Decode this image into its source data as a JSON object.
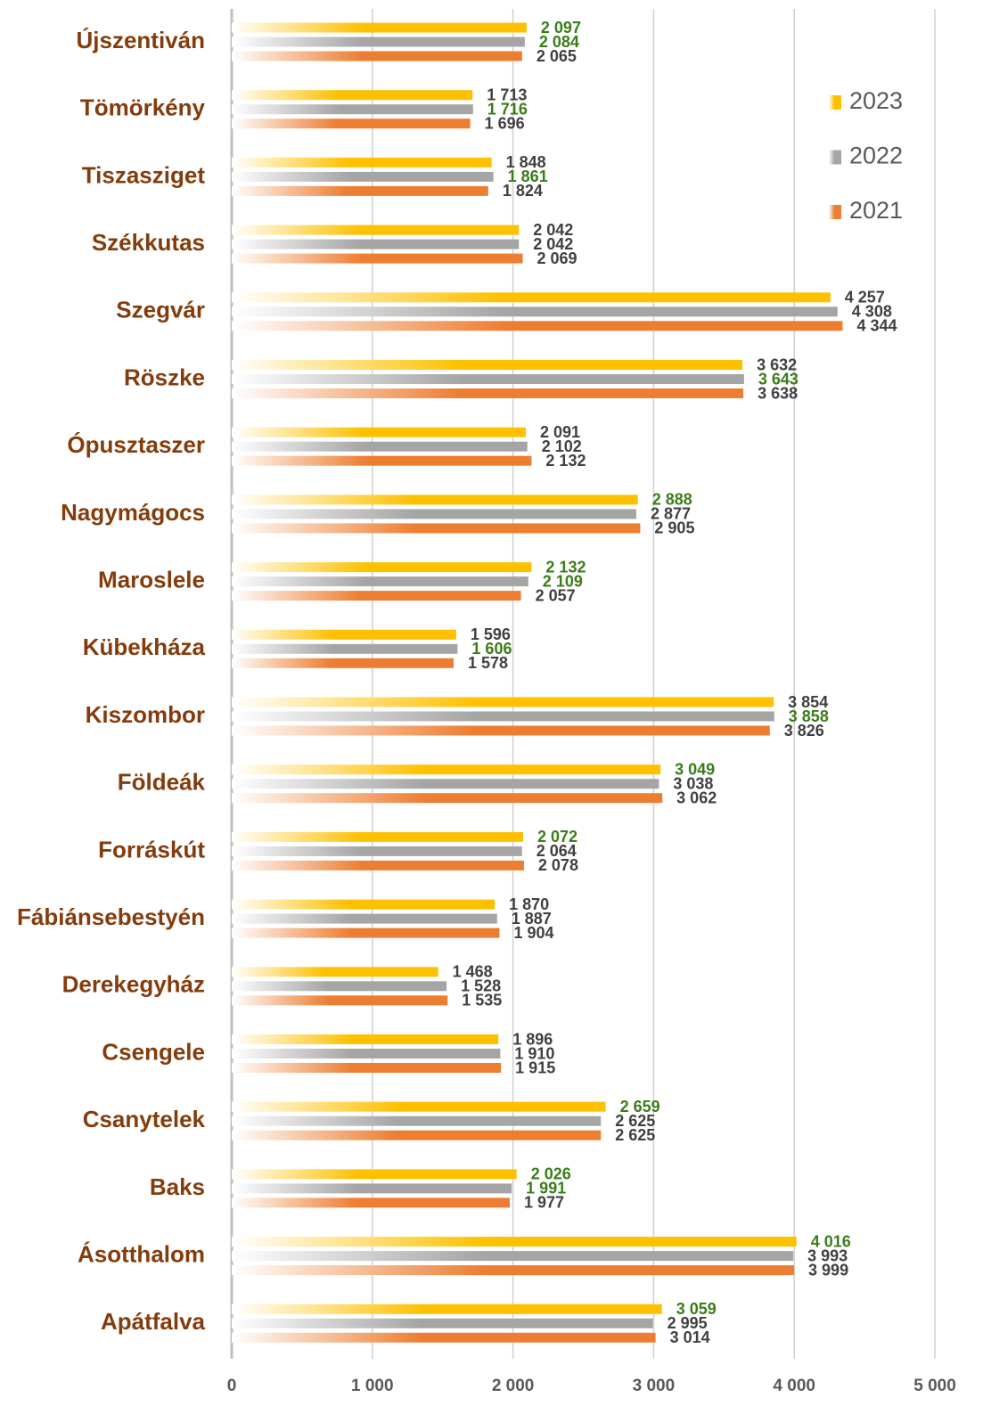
{
  "chart_data": {
    "type": "hbar",
    "categories": [
      "Újszentiván",
      "Tömörkény",
      "Tiszasziget",
      "Székkutas",
      "Szegvár",
      "Röszke",
      "Ópusztaszer",
      "Nagymágocs",
      "Maroslele",
      "Kübekháza",
      "Kiszombor",
      "Földeák",
      "Forráskút",
      "Fábiánsebestyén",
      "Derekegyház",
      "Csengele",
      "Csanytelek",
      "Baks",
      "Ásotthalom",
      "Apátfalva"
    ],
    "series": [
      {
        "name": "2023",
        "color": "#ffc000",
        "values": [
          2097,
          1713,
          1848,
          2042,
          4257,
          3632,
          2091,
          2888,
          2132,
          1596,
          3854,
          3049,
          2072,
          1870,
          1468,
          1896,
          2659,
          2026,
          4016,
          3059
        ],
        "value_labels": [
          "2 097",
          "1 713",
          "1 848",
          "2 042",
          "4 257",
          "3 632",
          "2 091",
          "2 888",
          "2 132",
          "1 596",
          "3 854",
          "3 049",
          "2 072",
          "1 870",
          "1 468",
          "1 896",
          "2 659",
          "2 026",
          "4 016",
          "3 059"
        ]
      },
      {
        "name": "2022",
        "color": "#a5a5a5",
        "values": [
          2084,
          1716,
          1861,
          2042,
          4308,
          3643,
          2102,
          2877,
          2109,
          1606,
          3858,
          3038,
          2064,
          1887,
          1528,
          1910,
          2625,
          1991,
          3993,
          2995
        ],
        "value_labels": [
          "2 084",
          "1 716",
          "1 861",
          "2 042",
          "4 308",
          "3 643",
          "2 102",
          "2 877",
          "2 109",
          "1 606",
          "3 858",
          "3 038",
          "2 064",
          "1 887",
          "1 528",
          "1 910",
          "2 625",
          "1 991",
          "3 993",
          "2 995"
        ]
      },
      {
        "name": "2021",
        "color": "#ed7d31",
        "values": [
          2065,
          1696,
          1824,
          2069,
          4344,
          3638,
          2132,
          2905,
          2057,
          1578,
          3826,
          3062,
          2078,
          1904,
          1535,
          1915,
          2625,
          1977,
          3999,
          3014
        ],
        "value_labels": [
          "2 065",
          "1 696",
          "1 824",
          "2 069",
          "4 344",
          "3 638",
          "2 132",
          "2 905",
          "2 057",
          "1 578",
          "3 826",
          "3 062",
          "2 078",
          "1 904",
          "1 535",
          "1 915",
          "2 625",
          "1 977",
          "3 999",
          "3 014"
        ]
      }
    ],
    "xlim": [
      0,
      5000
    ],
    "xticks": [
      0,
      {
        "value": 1000,
        "label": "1 000"
      },
      {
        "value": 2000,
        "label": "2 000"
      },
      {
        "value": 3000,
        "label": "3 000"
      },
      {
        "value": 4000,
        "label": "4 000"
      },
      {
        "value": 5000,
        "label": "5 000"
      }
    ],
    "grid": true,
    "legend": "upper right",
    "label_color": "#404040",
    "increase_label_color": "#3a7d17",
    "category_color": "#843c0c"
  }
}
